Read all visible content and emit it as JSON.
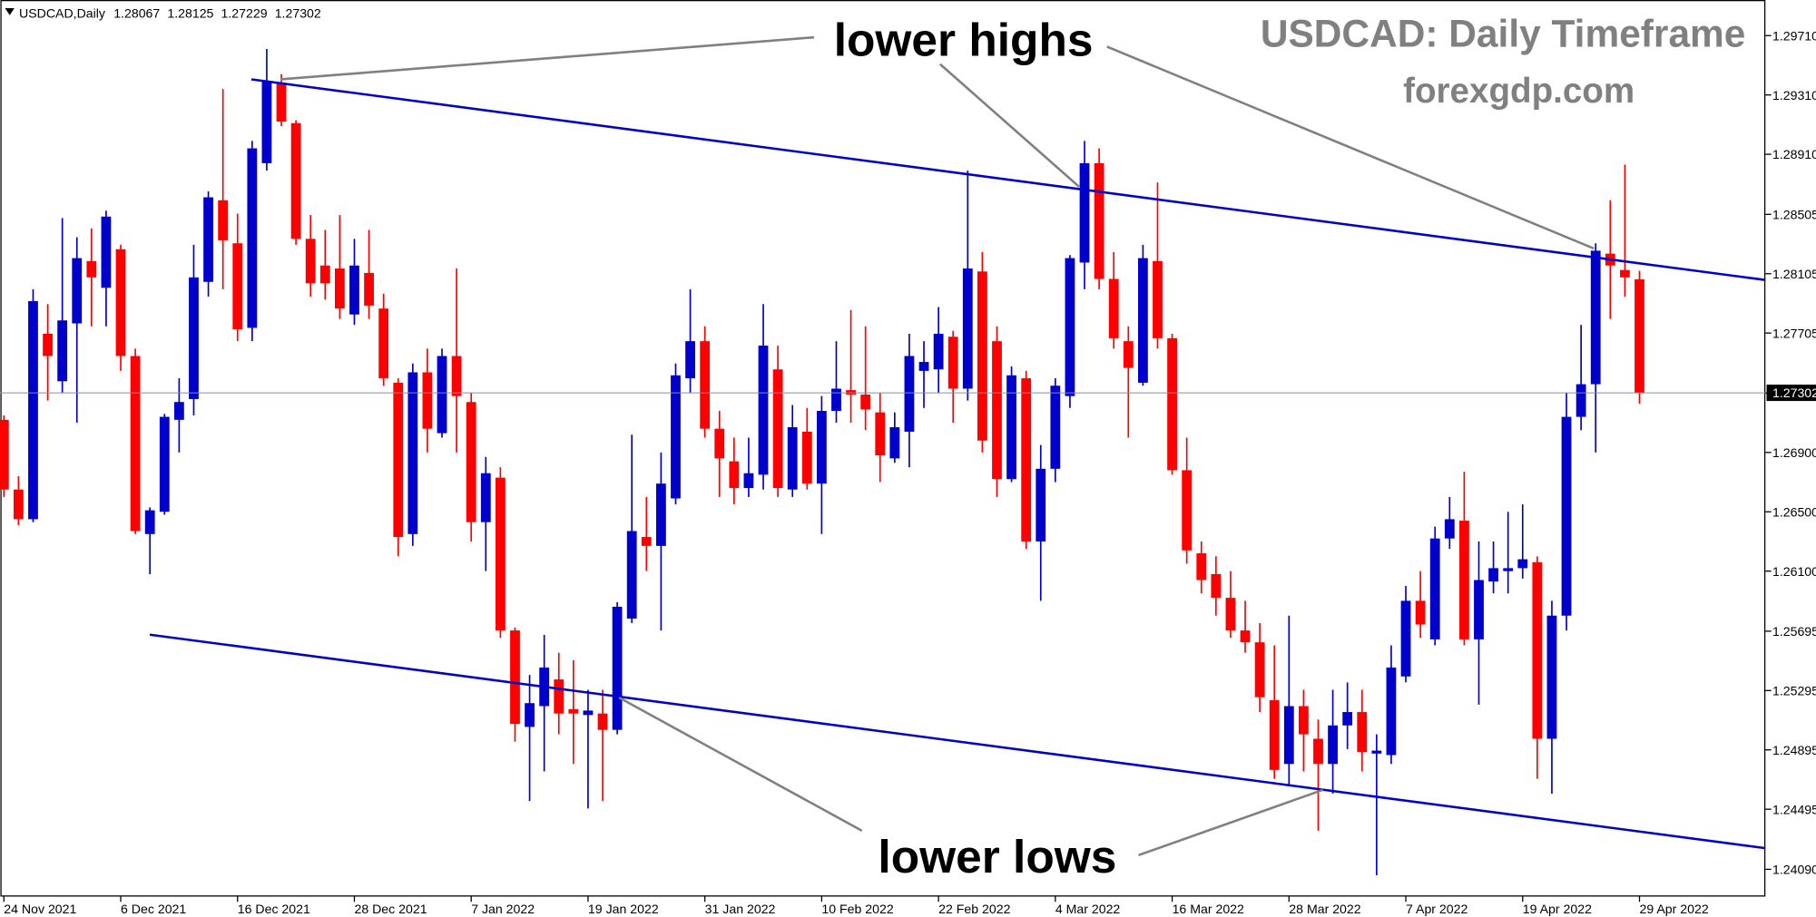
{
  "chart_data": {
    "type": "candlestick",
    "title": "USDCAD: Daily Timeframe",
    "subtitle": "forexgdp.com",
    "header": {
      "symbol": "USDCAD,Daily",
      "ohlc": [
        1.28067,
        1.28125,
        1.27229,
        1.27302
      ]
    },
    "annotations": [
      "lower highs",
      "lower lows"
    ],
    "current_price": 1.27302,
    "up_color": "#0000cd",
    "down_color": "#ff0000",
    "grid": false,
    "ylim": [
      1.2391,
      1.2995
    ],
    "yticks": [
      {
        "value": 1.2971,
        "label": "1.29710"
      },
      {
        "value": 1.2931,
        "label": "1.29310"
      },
      {
        "value": 1.2891,
        "label": "1.28910"
      },
      {
        "value": 1.28505,
        "label": "1.28505"
      },
      {
        "value": 1.28105,
        "label": "1.28105"
      },
      {
        "value": 1.27705,
        "label": "1.27705"
      },
      {
        "value": 1.273,
        "label": "1.27300"
      },
      {
        "value": 1.269,
        "label": "1.26900"
      },
      {
        "value": 1.265,
        "label": "1.26500"
      },
      {
        "value": 1.261,
        "label": "1.26100"
      },
      {
        "value": 1.25695,
        "label": "1.25695"
      },
      {
        "value": 1.25295,
        "label": "1.25295"
      },
      {
        "value": 1.24895,
        "label": "1.24895"
      },
      {
        "value": 1.24495,
        "label": "1.24495"
      },
      {
        "value": 1.2409,
        "label": "1.24090"
      }
    ],
    "categories": [
      "24 Nov 2021",
      null,
      null,
      null,
      null,
      null,
      null,
      null,
      "6 Dec 2021",
      null,
      null,
      null,
      null,
      null,
      null,
      null,
      "16 Dec 2021",
      null,
      null,
      null,
      null,
      null,
      null,
      null,
      "28 Dec 2021",
      null,
      null,
      null,
      null,
      null,
      null,
      null,
      "7 Jan 2022",
      null,
      null,
      null,
      null,
      null,
      null,
      null,
      "19 Jan 2022",
      null,
      null,
      null,
      null,
      null,
      null,
      null,
      "31 Jan 2022",
      null,
      null,
      null,
      null,
      null,
      null,
      null,
      "10 Feb 2022",
      null,
      null,
      null,
      null,
      null,
      null,
      null,
      "22 Feb 2022",
      null,
      null,
      null,
      null,
      null,
      null,
      null,
      "4 Mar 2022",
      null,
      null,
      null,
      null,
      null,
      null,
      null,
      "16 Mar 2022",
      null,
      null,
      null,
      null,
      null,
      null,
      null,
      "28 Mar 2022",
      null,
      null,
      null,
      null,
      null,
      null,
      null,
      "7 Apr 2022",
      null,
      null,
      null,
      null,
      null,
      null,
      null,
      "19 Apr 2022",
      null,
      null,
      null,
      null,
      null,
      null,
      null,
      "29 Apr 2022"
    ],
    "open": [
      1.2712,
      1.2665,
      1.2645,
      1.277,
      1.2738,
      1.2777,
      1.2819,
      1.2801,
      1.2827,
      1.2755,
      1.2635,
      1.265,
      1.2712,
      1.2726,
      1.2805,
      1.286,
      1.2831,
      1.2774,
      1.2885,
      1.2939,
      1.2912,
      1.2834,
      1.2816,
      1.2814,
      1.2783,
      1.2811,
      1.2787,
      1.2737,
      1.2635,
      1.2744,
      1.2703,
      1.2755,
      1.2724,
      1.2643,
      1.2673,
      1.257,
      1.2505,
      1.2519,
      1.2537,
      1.2517,
      1.2513,
      1.2514,
      1.2503,
      1.2578,
      1.2633,
      1.2627,
      1.2659,
      1.274,
      1.2765,
      1.2706,
      1.2684,
      1.2666,
      1.2675,
      1.2746,
      1.2665,
      1.2704,
      1.2669,
      1.2718,
      1.2732,
      1.2729,
      1.2717,
      1.2686,
      1.2704,
      1.2745,
      1.2746,
      1.2768,
      1.2733,
      1.2812,
      1.2765,
      1.2672,
      1.274,
      1.263,
      1.2679,
      1.2728,
      1.2818,
      1.2885,
      1.2807,
      1.2765,
      1.2737,
      1.2819,
      1.2767,
      1.2678,
      1.2622,
      1.2608,
      1.2592,
      1.257,
      1.2562,
      1.2523,
      1.248,
      1.2519,
      1.2497,
      1.248,
      1.2506,
      1.2515,
      1.2487,
      1.2486,
      1.2539,
      1.259,
      1.2564,
      1.2632,
      1.2644,
      1.2564,
      1.2603,
      1.261,
      1.2612,
      1.2616,
      1.2497,
      1.258,
      1.2714,
      1.2736,
      1.2824,
      1.2813,
      1.28067
    ],
    "high": [
      1.2715,
      1.2674,
      1.28,
      1.279,
      1.2848,
      1.2835,
      1.2841,
      1.2853,
      1.283,
      1.276,
      1.2653,
      1.2716,
      1.274,
      1.283,
      1.2866,
      1.2935,
      1.2851,
      1.29,
      1.2962,
      1.2945,
      1.2914,
      1.285,
      1.284,
      1.285,
      1.2834,
      1.284,
      1.2797,
      1.274,
      1.275,
      1.276,
      1.276,
      1.2814,
      1.273,
      1.2687,
      1.268,
      1.2572,
      1.254,
      1.2567,
      1.2555,
      1.255,
      1.253,
      1.253,
      1.2589,
      1.2702,
      1.266,
      1.269,
      1.275,
      1.28,
      1.2775,
      1.2718,
      1.27,
      1.27,
      1.279,
      1.2762,
      1.2722,
      1.272,
      1.2728,
      1.2765,
      1.2786,
      1.2775,
      1.273,
      1.2717,
      1.277,
      1.2765,
      1.2788,
      1.2772,
      1.288,
      1.2825,
      1.2775,
      1.2748,
      1.2745,
      1.2695,
      1.274,
      1.2823,
      1.29,
      1.2895,
      1.2825,
      1.2775,
      1.283,
      1.2872,
      1.277,
      1.27,
      1.263,
      1.262,
      1.261,
      1.259,
      1.2575,
      1.256,
      1.258,
      1.253,
      1.251,
      1.253,
      1.2535,
      1.253,
      1.25,
      1.256,
      1.26,
      1.261,
      1.264,
      1.266,
      1.2677,
      1.263,
      1.263,
      1.265,
      1.2655,
      1.262,
      1.259,
      1.273,
      1.2776,
      1.2831,
      1.286,
      1.2884,
      1.28125
    ],
    "low": [
      1.266,
      1.2641,
      1.2643,
      1.2725,
      1.273,
      1.271,
      1.2775,
      1.2775,
      1.2745,
      1.2635,
      1.2608,
      1.2648,
      1.269,
      1.2715,
      1.2795,
      1.28,
      1.2765,
      1.2765,
      1.288,
      1.291,
      1.283,
      1.2795,
      1.2793,
      1.278,
      1.2776,
      1.278,
      1.2735,
      1.262,
      1.2627,
      1.269,
      1.27,
      1.269,
      1.263,
      1.261,
      1.2565,
      1.2495,
      1.2455,
      1.2475,
      1.25,
      1.248,
      1.245,
      1.2455,
      1.25,
      1.2575,
      1.261,
      1.257,
      1.2655,
      1.273,
      1.27,
      1.266,
      1.2655,
      1.266,
      1.2665,
      1.266,
      1.266,
      1.2665,
      1.2635,
      1.271,
      1.271,
      1.2705,
      1.267,
      1.2683,
      1.268,
      1.272,
      1.273,
      1.271,
      1.2725,
      1.269,
      1.266,
      1.267,
      1.2625,
      1.259,
      1.267,
      1.272,
      1.28,
      1.28,
      1.276,
      1.27,
      1.2735,
      1.276,
      1.2675,
      1.2615,
      1.2595,
      1.258,
      1.2565,
      1.2555,
      1.2515,
      1.247,
      1.2465,
      1.2475,
      1.2435,
      1.246,
      1.249,
      1.2475,
      1.2405,
      1.248,
      1.2535,
      1.2565,
      1.256,
      1.2625,
      1.256,
      1.252,
      1.2595,
      1.2595,
      1.2605,
      1.247,
      1.246,
      1.257,
      1.2705,
      1.269,
      1.278,
      1.2795,
      1.27229
    ],
    "close": [
      1.2665,
      1.2645,
      1.2792,
      1.2755,
      1.2779,
      1.2821,
      1.2808,
      1.2849,
      1.2755,
      1.2637,
      1.2651,
      1.2714,
      1.2724,
      1.2808,
      1.2862,
      1.2833,
      1.2773,
      1.2895,
      1.294,
      1.2913,
      1.2834,
      1.2804,
      1.2804,
      1.2787,
      1.2816,
      1.2789,
      1.274,
      1.2633,
      1.2744,
      1.2706,
      1.2755,
      1.2728,
      1.2643,
      1.2676,
      1.257,
      1.2507,
      1.2521,
      1.2545,
      1.2514,
      1.2514,
      1.2516,
      1.2503,
      1.2586,
      1.2637,
      1.2627,
      1.2669,
      1.2742,
      1.2765,
      1.2706,
      1.2686,
      1.2666,
      1.2676,
      1.2762,
      1.2666,
      1.2707,
      1.2669,
      1.2718,
      1.2733,
      1.2729,
      1.2719,
      1.2688,
      1.2707,
      1.2755,
      1.2751,
      1.277,
      1.2733,
      1.2814,
      1.2698,
      1.2672,
      1.2742,
      1.263,
      1.2679,
      1.2735,
      1.2821,
      1.2885,
      1.2807,
      1.2767,
      1.2747,
      1.2821,
      1.2767,
      1.2678,
      1.2624,
      1.2604,
      1.2592,
      1.257,
      1.2562,
      1.2525,
      1.2476,
      1.2519,
      1.25,
      1.248,
      1.2506,
      1.2515,
      1.2488,
      1.2489,
      1.2545,
      1.259,
      1.2574,
      1.2632,
      1.2645,
      1.2564,
      1.2604,
      1.2612,
      1.2612,
      1.2618,
      1.2497,
      1.258,
      1.2714,
      1.2736,
      1.2826,
      1.2816,
      1.2808,
      1.27302
    ]
  }
}
